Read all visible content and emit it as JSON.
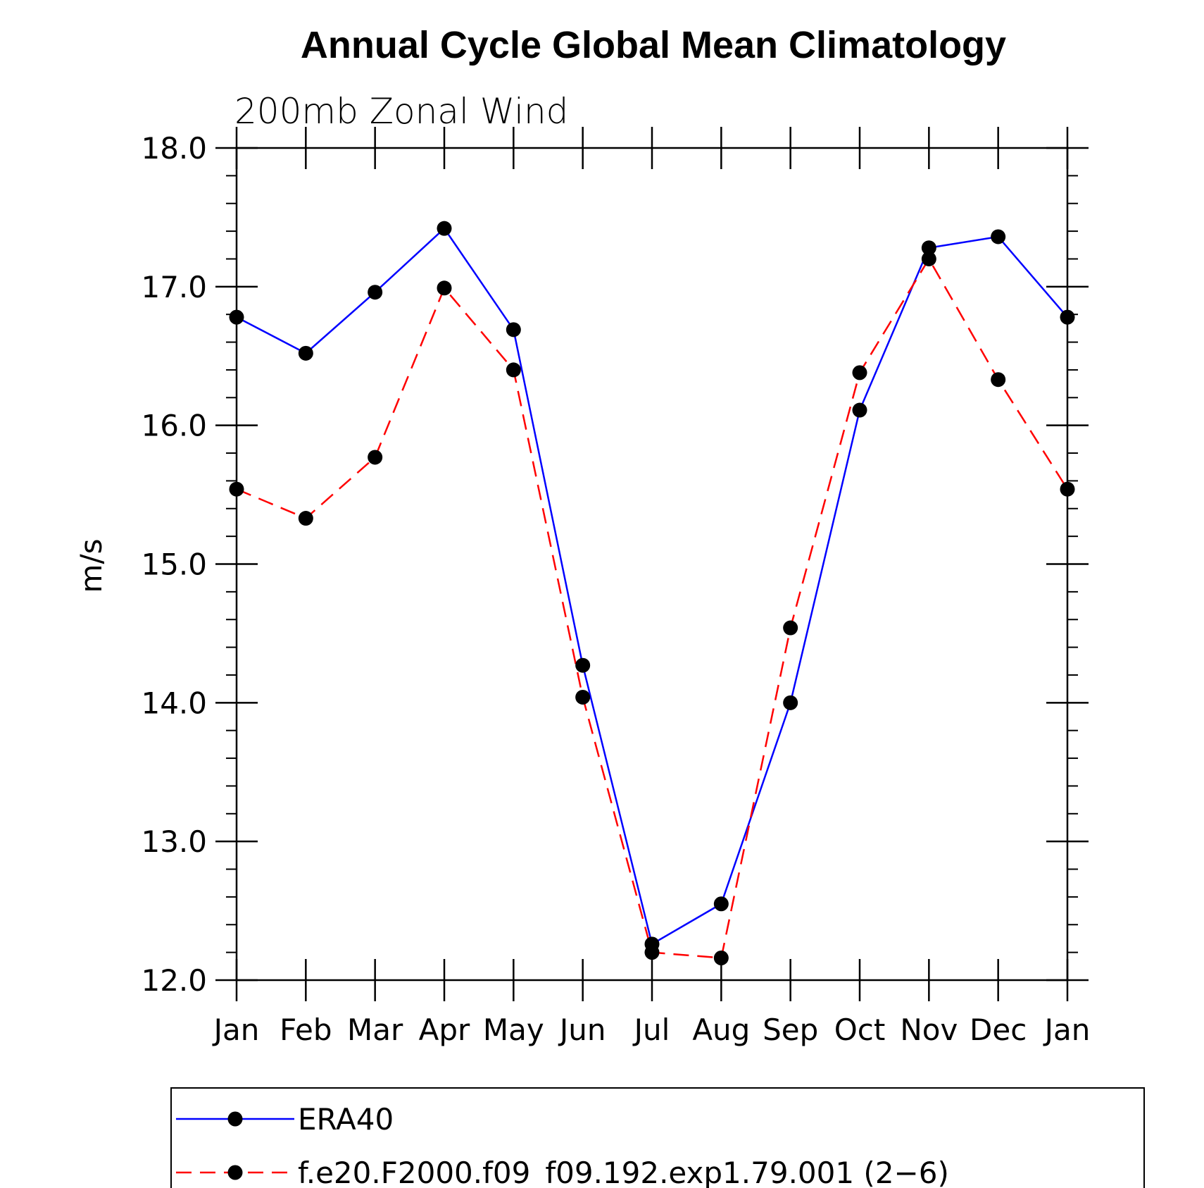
{
  "chart_data": {
    "type": "line",
    "title": "Annual Cycle Global Mean Climatology",
    "subtitle": "200mb Zonal Wind",
    "ylabel": "m/s",
    "xlabel": "",
    "categories": [
      "Jan",
      "Feb",
      "Mar",
      "Apr",
      "May",
      "Jun",
      "Jul",
      "Aug",
      "Sep",
      "Oct",
      "Nov",
      "Dec",
      "Jan"
    ],
    "ylim": [
      12.0,
      18.0
    ],
    "yticks": [
      "12.0",
      "13.0",
      "14.0",
      "15.0",
      "16.0",
      "17.0",
      "18.0"
    ],
    "grid": false,
    "legend_position": "bottom",
    "series": [
      {
        "name": "ERA40",
        "color": "#0000ff",
        "line_style": "solid",
        "values": [
          16.78,
          16.52,
          16.96,
          17.42,
          16.69,
          14.27,
          12.26,
          12.55,
          14.0,
          16.11,
          17.28,
          17.36,
          16.78
        ]
      },
      {
        "name": "f.e20.F2000.f09_f09.192.exp1.79.001 (2−6)",
        "color": "#ff0000",
        "line_style": "dashed",
        "values": [
          15.54,
          15.33,
          15.77,
          16.99,
          16.4,
          14.04,
          12.2,
          12.16,
          14.54,
          16.38,
          17.2,
          16.33,
          15.54
        ]
      }
    ]
  }
}
